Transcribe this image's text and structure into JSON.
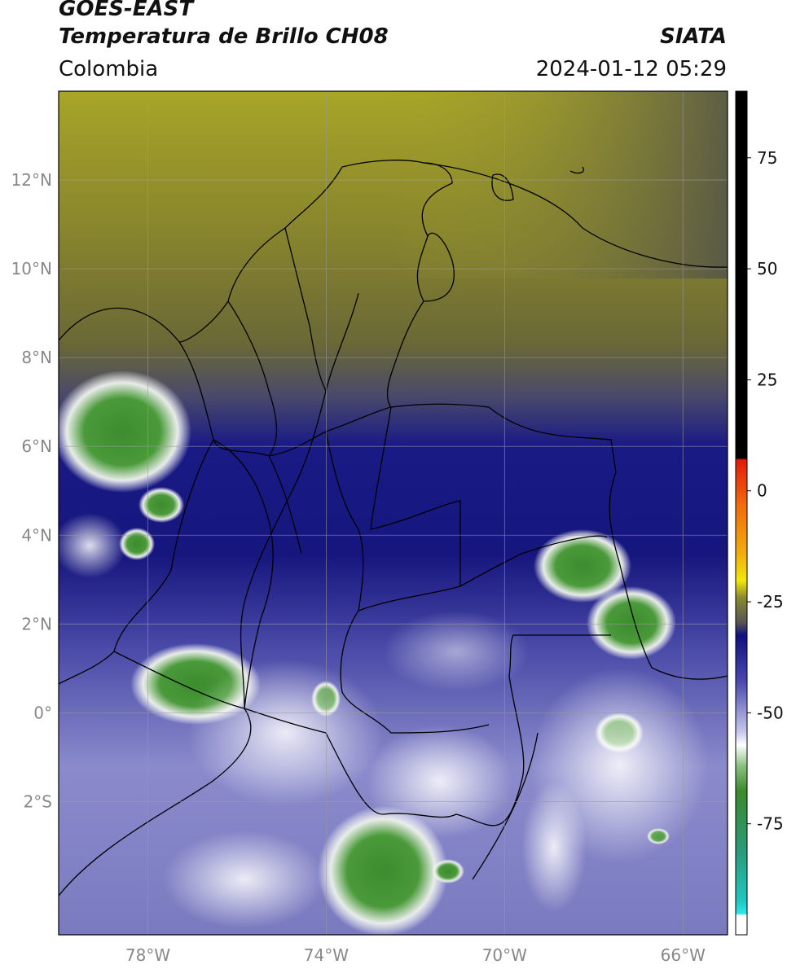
{
  "header": {
    "satellite": "GOES-EAST",
    "product": "Temperatura de Brillo CH08",
    "organization": "SIATA",
    "region": "Colombia",
    "timestamp": "2024-01-12 05:29"
  },
  "map": {
    "extent": {
      "lon": [
        -80,
        -65
      ],
      "lat": [
        -5,
        14
      ]
    },
    "lat_ticks": [
      {
        "value": 12,
        "label": "12°N"
      },
      {
        "value": 10,
        "label": "10°N"
      },
      {
        "value": 8,
        "label": "8°N"
      },
      {
        "value": 6,
        "label": "6°N"
      },
      {
        "value": 4,
        "label": "4°N"
      },
      {
        "value": 2,
        "label": "2°N"
      },
      {
        "value": 0,
        "label": "0°"
      },
      {
        "value": -2,
        "label": "2°S"
      }
    ],
    "lon_ticks": [
      {
        "value": -78,
        "label": "78°W"
      },
      {
        "value": -74,
        "label": "74°W"
      },
      {
        "value": -70,
        "label": "70°W"
      },
      {
        "value": -66,
        "label": "66°W"
      }
    ],
    "gridlines": true
  },
  "colorbar": {
    "range": [
      -100,
      90
    ],
    "ticks": [
      {
        "value": 75,
        "label": "75"
      },
      {
        "value": 50,
        "label": "50"
      },
      {
        "value": 25,
        "label": "25"
      },
      {
        "value": 0,
        "label": "0"
      },
      {
        "value": -25,
        "label": "-25"
      },
      {
        "value": -50,
        "label": "-50"
      },
      {
        "value": -75,
        "label": "-75"
      }
    ],
    "colors": {
      "hot": "#000000",
      "red": "#e21b0a",
      "orange": "#f28c0c",
      "yellow": "#f2e80c",
      "olive": "#6e6a2a",
      "dark": "#444444",
      "navy": "#101080",
      "lavender": "#9a9ad8",
      "white": "#ffffff",
      "green": "#3a8a2a",
      "teal": "#1fc0b0",
      "cyan": "#2ee8e8"
    }
  }
}
